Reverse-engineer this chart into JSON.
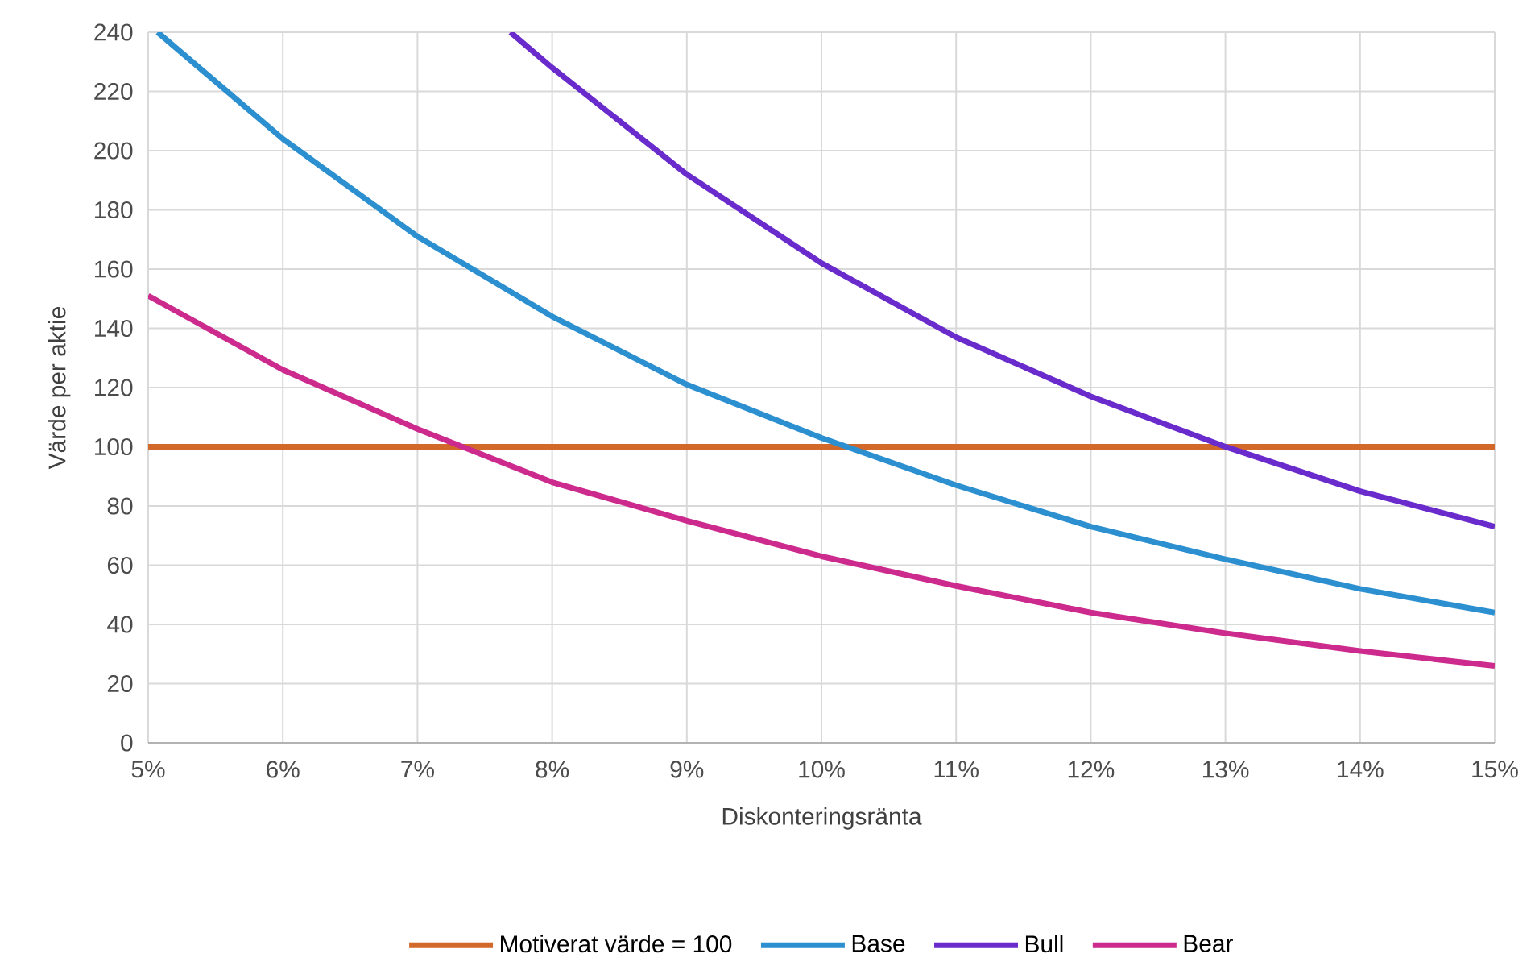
{
  "chart_data": {
    "type": "line",
    "xlabel": "Diskonteringsränta",
    "ylabel": "Värde per aktie",
    "x": [
      5,
      6,
      7,
      8,
      9,
      10,
      11,
      12,
      13,
      14,
      15
    ],
    "series": [
      {
        "name": "Motiverat värde = 100",
        "color": "#d2692a",
        "values": [
          100,
          100,
          100,
          100,
          100,
          100,
          100,
          100,
          100,
          100,
          100
        ]
      },
      {
        "name": "Base",
        "color": "#2b8fd0",
        "x": [
          5.07,
          6,
          7,
          8,
          9,
          10,
          11,
          12,
          13,
          14,
          15
        ],
        "values": [
          240,
          204,
          171,
          144,
          121,
          103,
          87,
          73,
          62,
          52,
          44
        ]
      },
      {
        "name": "Bull",
        "color": "#6a2bcc",
        "x": [
          7.69,
          8,
          9,
          10,
          11,
          12,
          13,
          14,
          15
        ],
        "values": [
          240,
          228,
          192,
          162,
          137,
          117,
          100,
          85,
          73
        ]
      },
      {
        "name": "Bear",
        "color": "#cc2a8c",
        "values": [
          151,
          126,
          106,
          88,
          75,
          63,
          53,
          44,
          37,
          31,
          26
        ]
      }
    ],
    "xlim": [
      5,
      15
    ],
    "ylim": [
      0,
      240
    ],
    "xticks": [
      {
        "value": 5,
        "label": "5%"
      },
      {
        "value": 6,
        "label": "6%"
      },
      {
        "value": 7,
        "label": "7%"
      },
      {
        "value": 8,
        "label": "8%"
      },
      {
        "value": 9,
        "label": "9%"
      },
      {
        "value": 10,
        "label": "10%"
      },
      {
        "value": 11,
        "label": "11%"
      },
      {
        "value": 12,
        "label": "12%"
      },
      {
        "value": 13,
        "label": "13%"
      },
      {
        "value": 14,
        "label": "14%"
      },
      {
        "value": 15,
        "label": "15%"
      }
    ],
    "yticks": [
      0,
      20,
      40,
      60,
      80,
      100,
      120,
      140,
      160,
      180,
      200,
      220,
      240
    ],
    "grid": true,
    "legend": "bottom"
  }
}
